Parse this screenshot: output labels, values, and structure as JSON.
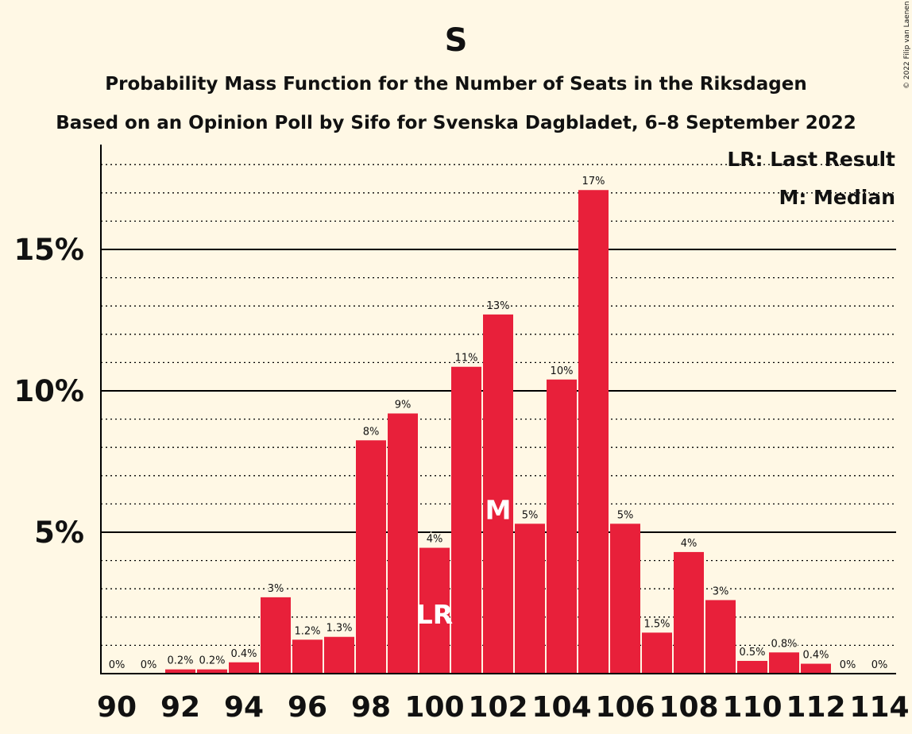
{
  "copyright": "© 2022 Filip van Laenen",
  "chart_data": {
    "type": "bar",
    "title": "S",
    "subtitle": "Probability Mass Function for the Number of Seats in the Riksdagen",
    "subtitle2": "Based on an Opinion Poll by Sifo for Svenska Dagbladet, 6–8 September 2022",
    "legend": [
      "LR: Last Result",
      "M: Median"
    ],
    "legend_position": "top-right",
    "x": [
      90,
      91,
      92,
      93,
      94,
      95,
      96,
      97,
      98,
      99,
      100,
      101,
      102,
      103,
      104,
      105,
      106,
      107,
      108,
      109,
      110,
      111,
      112,
      113,
      114
    ],
    "values": [
      0,
      0,
      0.15,
      0.15,
      0.4,
      2.7,
      1.2,
      1.3,
      8.25,
      9.2,
      4.45,
      10.85,
      12.7,
      5.3,
      10.4,
      17.1,
      5.3,
      1.45,
      4.3,
      2.6,
      0.45,
      0.75,
      0.35,
      0,
      0
    ],
    "labels": [
      "0%",
      "0%",
      "0.2%",
      "0.2%",
      "0.4%",
      "3%",
      "1.2%",
      "1.3%",
      "8%",
      "9%",
      "4%",
      "11%",
      "13%",
      "5%",
      "10%",
      "17%",
      "5%",
      "1.5%",
      "4%",
      "3%",
      "0.5%",
      "0.8%",
      "0.4%",
      "0%",
      "0%"
    ],
    "x_tick_labels": [
      "90",
      "92",
      "94",
      "96",
      "98",
      "100",
      "102",
      "104",
      "106",
      "108",
      "110",
      "112",
      "114"
    ],
    "x_ticks": [
      90,
      92,
      94,
      96,
      98,
      100,
      102,
      104,
      106,
      108,
      110,
      112,
      114
    ],
    "y_ticks": [
      5,
      10,
      15
    ],
    "y_tick_labels": [
      "5%",
      "10%",
      "15%"
    ],
    "ylim": [
      0,
      18.6
    ],
    "markers": [
      {
        "x": 100,
        "text": "LR"
      },
      {
        "x": 102,
        "text": "M"
      }
    ],
    "bar_color": "#e8203a",
    "background": "#fff8e5"
  }
}
